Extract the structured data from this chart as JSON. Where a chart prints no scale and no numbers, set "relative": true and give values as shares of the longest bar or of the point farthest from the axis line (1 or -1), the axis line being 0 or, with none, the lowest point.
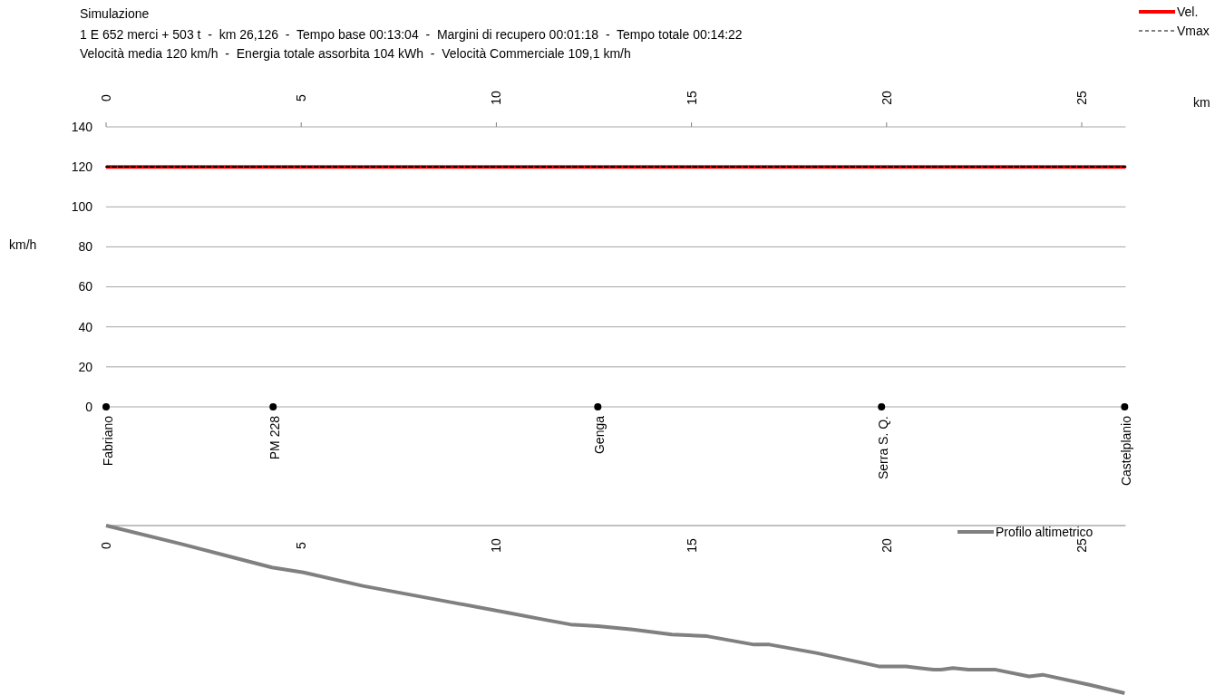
{
  "chart_data": [
    {
      "type": "line",
      "title": "Simulazione",
      "subtitle": "1 E 652 merci + 503 t  -  km 26,126  -  Tempo base 00:13:04  -  Margini di recupero 00:01:18  -  Tempo totale 00:14:22\nVelocità media 120 km/h  -  Energia totale assorbita 104 kWh  -  Velocità Commerciale 109,1 km/h",
      "xlabel": "km",
      "ylabel": "km/h",
      "xlim": [
        0,
        26.126
      ],
      "xticks": [
        0,
        5,
        10,
        15,
        20,
        25
      ],
      "ylim": [
        0,
        140
      ],
      "yticks": [
        0,
        20,
        40,
        60,
        80,
        100,
        120,
        140
      ],
      "grid": "y",
      "legend": "top right",
      "series": [
        {
          "name": "Vel.",
          "color": "#ff0000",
          "x": [
            0,
            26.126
          ],
          "values": [
            120,
            120
          ],
          "line_style": "solid"
        },
        {
          "name": "Vmax",
          "color": "#000000",
          "x": [
            0,
            26.126
          ],
          "values": [
            120,
            120
          ],
          "line_style": "dashed"
        },
        {
          "type": "scatter",
          "color": "#000000",
          "marker": "circle",
          "x": [
            0,
            4.28,
            12.6,
            19.87,
            26.1
          ],
          "values": [
            0,
            0,
            0,
            0,
            0
          ]
        }
      ],
      "annotations": [
        {
          "text": "Fabriano",
          "x": 0,
          "y": 0
        },
        {
          "text": "PM 228",
          "x": 4.28,
          "y": 0
        },
        {
          "text": "Genga",
          "x": 12.6,
          "y": 0
        },
        {
          "text": "Serra S. Q.",
          "x": 19.87,
          "y": 0
        },
        {
          "text": "Castelplanio",
          "x": 26.1,
          "y": 0
        }
      ]
    },
    {
      "type": "line",
      "relative": true,
      "xlim": [
        0,
        26.126
      ],
      "xticks": [
        0,
        5,
        10,
        15,
        20,
        25
      ],
      "tick_labels": "x",
      "legend": "top right",
      "series": [
        {
          "name": "Profilo altimetrico",
          "color": "#808080",
          "x": [
            0,
            1.93,
            4.25,
            5.06,
            6.58,
            8.9,
            10.3,
            11.2,
            11.9,
            12.6,
            13.5,
            14.5,
            15.4,
            16.6,
            17.0,
            18.2,
            19.8,
            20.5,
            21.2,
            21.4,
            21.7,
            22.1,
            22.8,
            23.65,
            24.0,
            25.2,
            26.1
          ],
          "values": [
            0,
            -0.11,
            -0.25,
            -0.28,
            -0.36,
            -0.46,
            -0.52,
            -0.56,
            -0.59,
            -0.6,
            -0.62,
            -0.65,
            -0.66,
            -0.71,
            -0.71,
            -0.76,
            -0.84,
            -0.84,
            -0.86,
            -0.86,
            -0.85,
            -0.86,
            -0.86,
            -0.9,
            -0.89,
            -0.95,
            -1
          ]
        }
      ]
    }
  ]
}
